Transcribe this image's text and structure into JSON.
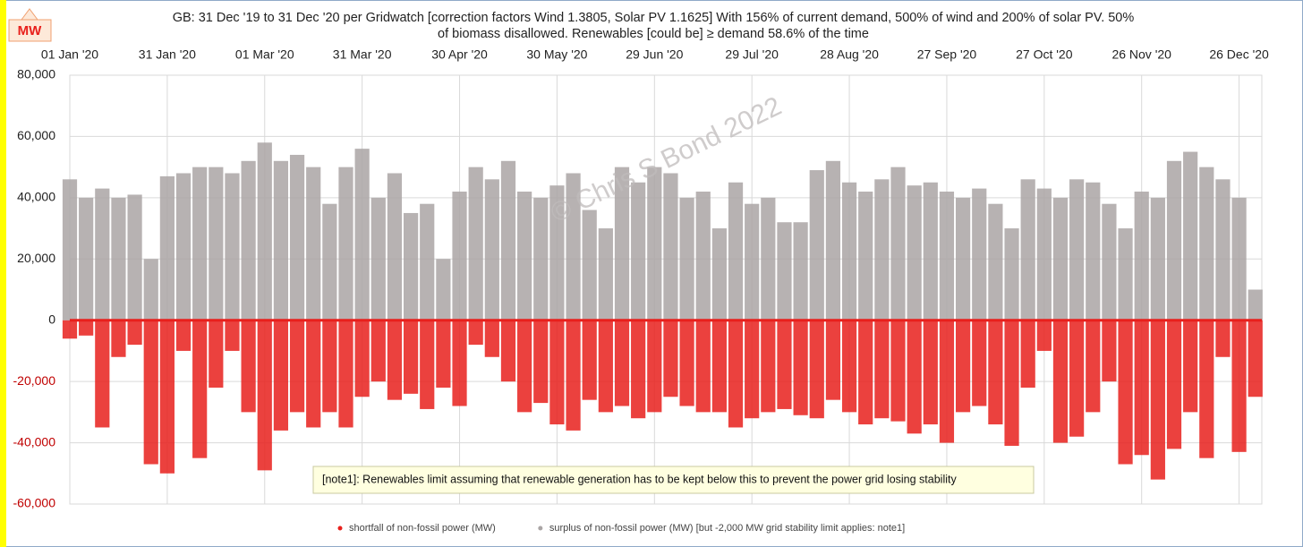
{
  "chart_data": {
    "type": "scatter",
    "unit_badge": "MW",
    "title": "GB: 31 Dec '19 to 31 Dec '20 per Gridwatch [correction factors Wind 1.3805, Solar PV 1.1625]   With 156% of current demand, 500% of wind and 200% of solar PV.  50%",
    "subtitle": "of biomass disallowed.   Renewables [could be] ≥ demand 58.6% of the time",
    "watermark": "© Chris S Bond  2022",
    "annotation": "[note1]: Renewables limit assuming that renewable generation has to be kept below this to prevent the power grid losing stability",
    "x": [
      "2020-01-01",
      "2020-01-06",
      "2020-01-11",
      "2020-01-16",
      "2020-01-21",
      "2020-01-26",
      "2020-01-31",
      "2020-02-05",
      "2020-02-10",
      "2020-02-15",
      "2020-02-20",
      "2020-02-25",
      "2020-03-01",
      "2020-03-06",
      "2020-03-11",
      "2020-03-16",
      "2020-03-21",
      "2020-03-26",
      "2020-03-31",
      "2020-04-05",
      "2020-04-10",
      "2020-04-15",
      "2020-04-20",
      "2020-04-25",
      "2020-04-30",
      "2020-05-05",
      "2020-05-10",
      "2020-05-15",
      "2020-05-20",
      "2020-05-25",
      "2020-05-30",
      "2020-06-04",
      "2020-06-09",
      "2020-06-14",
      "2020-06-19",
      "2020-06-24",
      "2020-06-29",
      "2020-07-04",
      "2020-07-09",
      "2020-07-14",
      "2020-07-19",
      "2020-07-24",
      "2020-07-29",
      "2020-08-03",
      "2020-08-08",
      "2020-08-13",
      "2020-08-18",
      "2020-08-23",
      "2020-08-28",
      "2020-09-02",
      "2020-09-07",
      "2020-09-12",
      "2020-09-17",
      "2020-09-22",
      "2020-09-27",
      "2020-10-02",
      "2020-10-07",
      "2020-10-12",
      "2020-10-17",
      "2020-10-22",
      "2020-10-27",
      "2020-11-01",
      "2020-11-06",
      "2020-11-11",
      "2020-11-16",
      "2020-11-21",
      "2020-11-26",
      "2020-12-01",
      "2020-12-06",
      "2020-12-11",
      "2020-12-16",
      "2020-12-21",
      "2020-12-26",
      "2020-12-31"
    ],
    "series": [
      {
        "name": "shortfall of non-fossil power (MW)",
        "color": "#e8201c",
        "values": [
          -6000,
          -5000,
          -35000,
          -12000,
          -8000,
          -47000,
          -50000,
          -10000,
          -45000,
          -22000,
          -10000,
          -30000,
          -49000,
          -36000,
          -30000,
          -35000,
          -30000,
          -35000,
          -25000,
          -20000,
          -26000,
          -24000,
          -29000,
          -22000,
          -28000,
          -8000,
          -12000,
          -20000,
          -30000,
          -27000,
          -34000,
          -36000,
          -26000,
          -30000,
          -28000,
          -32000,
          -30000,
          -25000,
          -28000,
          -30000,
          -30000,
          -35000,
          -32000,
          -30000,
          -29000,
          -31000,
          -32000,
          -26000,
          -30000,
          -34000,
          -32000,
          -33000,
          -37000,
          -34000,
          -40000,
          -30000,
          -28000,
          -34000,
          -41000,
          -22000,
          -10000,
          -40000,
          -38000,
          -30000,
          -20000,
          -47000,
          -44000,
          -52000,
          -42000,
          -30000,
          -45000,
          -12000,
          -43000,
          -25000
        ]
      },
      {
        "name": "surplus of non-fossil power (MW) [but -2,000 MW grid stability limit applies: note1]",
        "color": "#aaa5a5",
        "values": [
          46000,
          40000,
          43000,
          40000,
          41000,
          20000,
          47000,
          48000,
          50000,
          50000,
          48000,
          52000,
          58000,
          52000,
          54000,
          50000,
          38000,
          50000,
          56000,
          40000,
          48000,
          35000,
          38000,
          20000,
          42000,
          50000,
          46000,
          52000,
          42000,
          40000,
          44000,
          48000,
          36000,
          30000,
          50000,
          45000,
          50000,
          48000,
          40000,
          42000,
          30000,
          45000,
          38000,
          40000,
          32000,
          32000,
          49000,
          52000,
          45000,
          42000,
          46000,
          50000,
          44000,
          45000,
          42000,
          40000,
          43000,
          38000,
          30000,
          46000,
          43000,
          40000,
          46000,
          45000,
          38000,
          30000,
          42000,
          40000,
          52000,
          55000,
          50000,
          46000,
          40000,
          10000
        ]
      }
    ],
    "xlim": [
      "2020-01-01",
      "2021-01-02"
    ],
    "xticks": [
      {
        "value": "2020-01-01",
        "label": "01 Jan '20"
      },
      {
        "value": "2020-01-31",
        "label": "31 Jan '20"
      },
      {
        "value": "2020-03-01",
        "label": "01 Mar '20"
      },
      {
        "value": "2020-03-31",
        "label": "31 Mar '20"
      },
      {
        "value": "2020-04-30",
        "label": "30 Apr '20"
      },
      {
        "value": "2020-05-30",
        "label": "30 May '20"
      },
      {
        "value": "2020-06-29",
        "label": "29 Jun '20"
      },
      {
        "value": "2020-07-29",
        "label": "29 Jul '20"
      },
      {
        "value": "2020-08-28",
        "label": "28 Aug '20"
      },
      {
        "value": "2020-09-27",
        "label": "27 Sep '20"
      },
      {
        "value": "2020-10-27",
        "label": "27 Oct '20"
      },
      {
        "value": "2020-11-26",
        "label": "26 Nov '20"
      },
      {
        "value": "2020-12-26",
        "label": "26 Dec '20"
      }
    ],
    "ylim": [
      -60000,
      80000
    ],
    "yticks": [
      {
        "value": -60000,
        "label": "-60,000"
      },
      {
        "value": -40000,
        "label": "-40,000"
      },
      {
        "value": -20000,
        "label": "-20,000"
      },
      0,
      {
        "value": 20000,
        "label": "20,000"
      },
      {
        "value": 40000,
        "label": "40,000"
      },
      {
        "value": 60000,
        "label": "60,000"
      },
      {
        "value": 80000,
        "label": "80,000"
      }
    ],
    "grid": true
  }
}
